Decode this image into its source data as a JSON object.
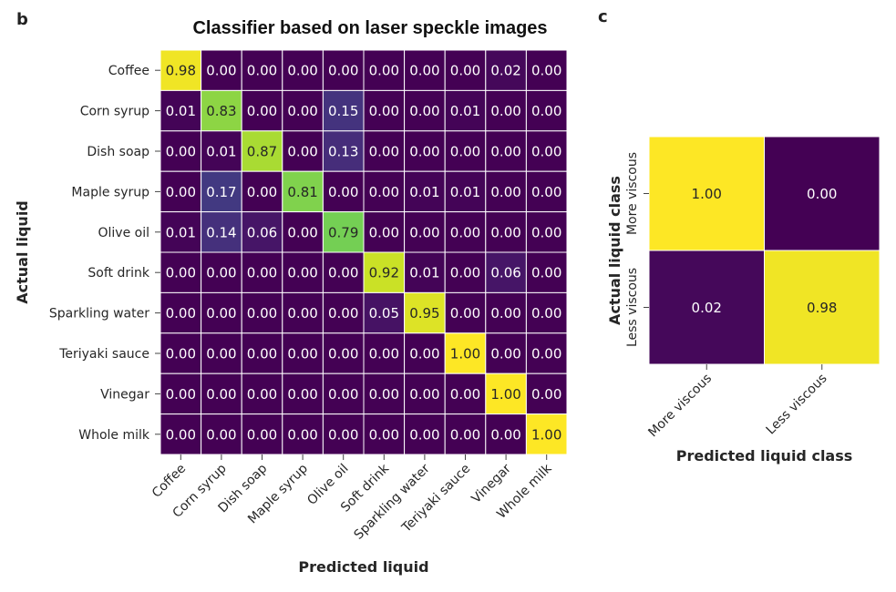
{
  "panel_b": "b",
  "panel_c": "c",
  "colors": {
    "low": "#440154",
    "high": "#fde725"
  },
  "chart_data": [
    {
      "type": "heatmap",
      "title": "Classifier based on laser speckle images",
      "xlabel": "Predicted liquid",
      "ylabel": "Actual liquid",
      "x_categories": [
        "Coffee",
        "Corn syrup",
        "Dish soap",
        "Maple syrup",
        "Olive oil",
        "Soft drink",
        "Sparkling water",
        "Teriyaki sauce",
        "Vinegar",
        "Whole milk"
      ],
      "y_categories": [
        "Coffee",
        "Corn syrup",
        "Dish soap",
        "Maple syrup",
        "Olive oil",
        "Soft drink",
        "Sparkling water",
        "Teriyaki sauce",
        "Vinegar",
        "Whole milk"
      ],
      "values": [
        [
          0.98,
          0.0,
          0.0,
          0.0,
          0.0,
          0.0,
          0.0,
          0.0,
          0.02,
          0.0
        ],
        [
          0.01,
          0.83,
          0.0,
          0.0,
          0.15,
          0.0,
          0.0,
          0.01,
          0.0,
          0.0
        ],
        [
          0.0,
          0.01,
          0.87,
          0.0,
          0.13,
          0.0,
          0.0,
          0.0,
          0.0,
          0.0
        ],
        [
          0.0,
          0.17,
          0.0,
          0.81,
          0.0,
          0.0,
          0.01,
          0.01,
          0.0,
          0.0
        ],
        [
          0.01,
          0.14,
          0.06,
          0.0,
          0.79,
          0.0,
          0.0,
          0.0,
          0.0,
          0.0
        ],
        [
          0.0,
          0.0,
          0.0,
          0.0,
          0.0,
          0.92,
          0.01,
          0.0,
          0.06,
          0.0
        ],
        [
          0.0,
          0.0,
          0.0,
          0.0,
          0.0,
          0.05,
          0.95,
          0.0,
          0.0,
          0.0
        ],
        [
          0.0,
          0.0,
          0.0,
          0.0,
          0.0,
          0.0,
          0.0,
          1.0,
          0.0,
          0.0
        ],
        [
          0.0,
          0.0,
          0.0,
          0.0,
          0.0,
          0.0,
          0.0,
          0.0,
          1.0,
          0.0
        ],
        [
          0.0,
          0.0,
          0.0,
          0.0,
          0.0,
          0.0,
          0.0,
          0.0,
          0.0,
          1.0
        ]
      ],
      "value_range": [
        0,
        1
      ]
    },
    {
      "type": "heatmap",
      "title": "",
      "xlabel": "Predicted liquid class",
      "ylabel": "Actual liquid class",
      "x_categories": [
        "More viscous",
        "Less viscous"
      ],
      "y_categories": [
        "More viscous",
        "Less viscous"
      ],
      "values": [
        [
          1.0,
          0.0
        ],
        [
          0.02,
          0.98
        ]
      ],
      "value_range": [
        0,
        1
      ]
    }
  ]
}
